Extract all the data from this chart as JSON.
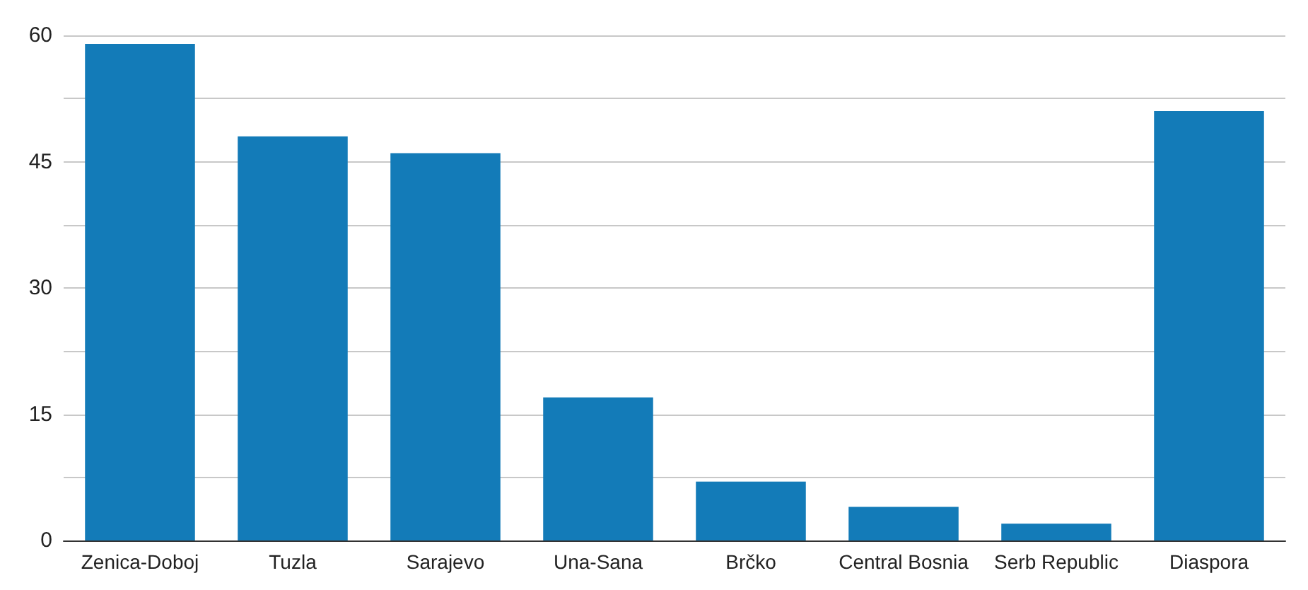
{
  "chart_data": {
    "type": "bar",
    "categories": [
      "Zenica-Doboj",
      "Tuzla",
      "Sarajevo",
      "Una-Sana",
      "Brčko",
      "Central Bosnia",
      "Serb Republic",
      "Diaspora"
    ],
    "values": [
      59,
      48,
      46,
      17,
      7,
      4,
      2,
      51
    ],
    "color": "#137bb8",
    "ylim": [
      0,
      60
    ],
    "yticks": [
      0,
      {
        "value": 7.5,
        "label": null
      },
      15,
      {
        "value": 22.5,
        "label": null
      },
      30,
      {
        "value": 37.5,
        "label": null
      },
      45,
      {
        "value": 52.5,
        "label": null
      },
      60
    ],
    "grid": "y"
  }
}
